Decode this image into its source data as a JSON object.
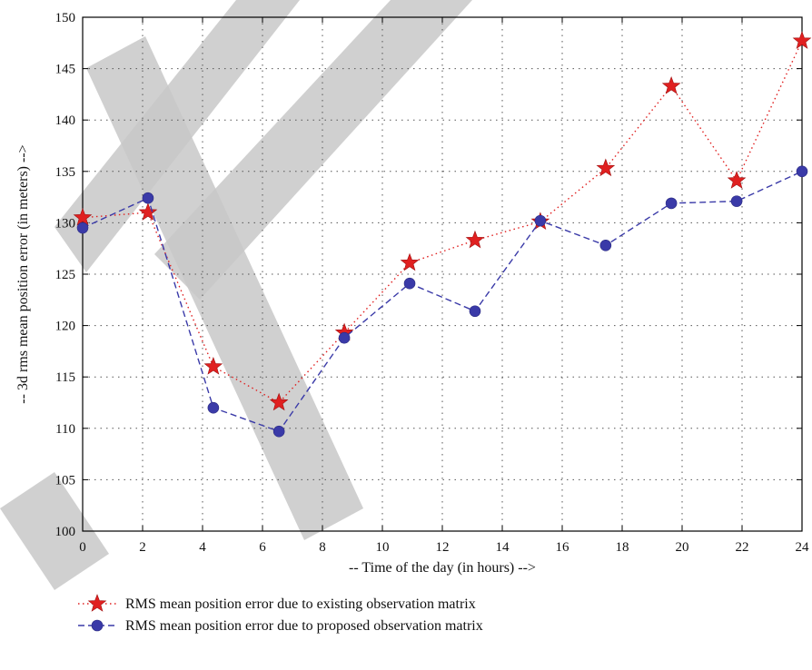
{
  "chart_data": {
    "type": "line",
    "xlabel": "-- Time of the day (in hours) -->",
    "ylabel": "-- 3d rms mean position error (in meters) -->",
    "xlim": [
      0,
      24
    ],
    "ylim": [
      100,
      150
    ],
    "xticks": [
      0,
      2,
      4,
      6,
      8,
      10,
      12,
      14,
      16,
      18,
      20,
      22,
      24
    ],
    "yticks": [
      100,
      105,
      110,
      115,
      120,
      125,
      130,
      135,
      140,
      145,
      150
    ],
    "grid": true,
    "legend_position": "bottom-left-outside",
    "x": [
      0,
      2.18,
      4.36,
      6.55,
      8.73,
      10.91,
      13.09,
      15.27,
      17.45,
      19.64,
      21.82,
      24
    ],
    "series": [
      {
        "name": "RMS mean position error due to existing observation matrix",
        "values": [
          130.5,
          131.0,
          116.0,
          112.5,
          119.3,
          126.1,
          128.3,
          130.1,
          135.3,
          143.3,
          134.1,
          147.7
        ],
        "color": "#e02020",
        "marker": "star",
        "line_style": "dotted"
      },
      {
        "name": "RMS mean position error due to proposed observation matrix",
        "values": [
          129.5,
          132.4,
          112.0,
          109.7,
          118.8,
          124.1,
          121.4,
          130.2,
          127.8,
          131.9,
          132.1,
          135.0
        ],
        "color": "#3a3aa8",
        "marker": "circle",
        "line_style": "dashed"
      }
    ]
  }
}
